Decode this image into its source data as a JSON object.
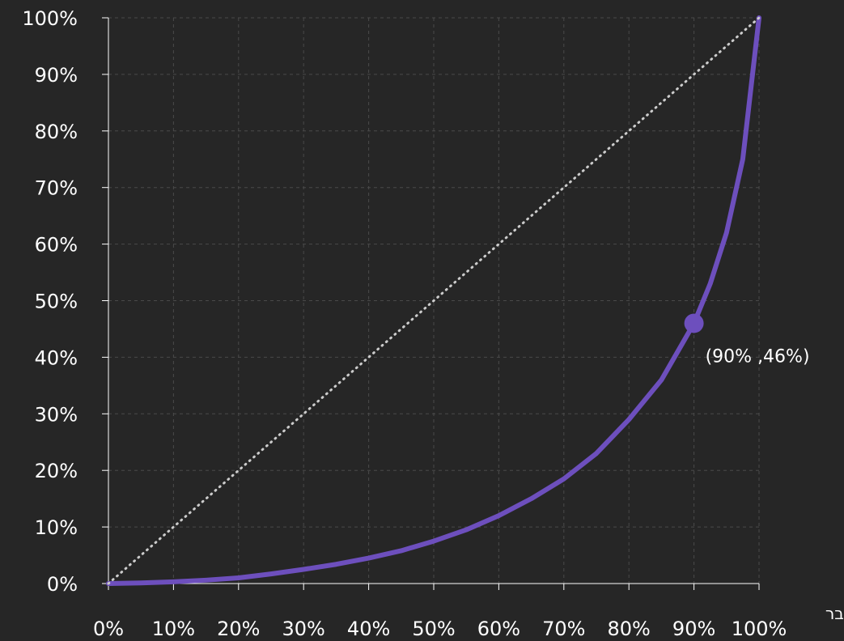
{
  "chart_data": {
    "type": "line",
    "title": "",
    "xlabel": "בר",
    "ylabel": "",
    "xlim": [
      0,
      100
    ],
    "ylim": [
      0,
      100
    ],
    "grid": true,
    "x_ticks": [
      "0%",
      "10%",
      "20%",
      "30%",
      "40%",
      "50%",
      "60%",
      "70%",
      "80%",
      "90%",
      "100%"
    ],
    "y_ticks": [
      "0%",
      "10%",
      "20%",
      "30%",
      "40%",
      "50%",
      "60%",
      "70%",
      "80%",
      "90%",
      "100%"
    ],
    "series": [
      {
        "line_style": "solid",
        "color": "#6d4fbd",
        "x": [
          0,
          5,
          10,
          15,
          20,
          25,
          30,
          35,
          40,
          45,
          50,
          55,
          60,
          65,
          70,
          75,
          80,
          85,
          90,
          92.5,
          95,
          97.5,
          99,
          100
        ],
        "y": [
          0,
          0.1,
          0.3,
          0.6,
          1.0,
          1.7,
          2.5,
          3.4,
          4.5,
          5.8,
          7.5,
          9.5,
          12,
          15,
          18.5,
          23,
          29,
          36,
          46,
          53,
          62,
          75,
          90,
          100
        ]
      },
      {
        "line_style": "dotted",
        "color": "#cccccc",
        "x": [
          0,
          100
        ],
        "y": [
          0,
          100
        ]
      }
    ],
    "annotations": [
      {
        "x": 90,
        "y": 46,
        "text": "(90% ,46%)",
        "marker_color": "#6d4fbd"
      }
    ]
  }
}
